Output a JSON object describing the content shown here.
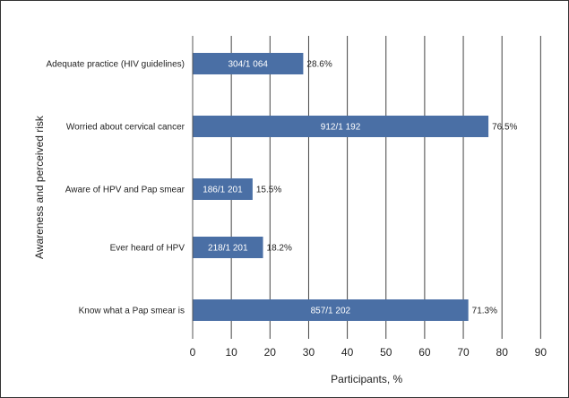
{
  "chart_data": {
    "type": "bar",
    "orientation": "horizontal",
    "title": "",
    "xlabel": "Participants, %",
    "ylabel": "Awareness and perceived risk",
    "xlim": [
      0,
      90
    ],
    "xticks": [
      "0",
      "10",
      "20",
      "30",
      "40",
      "50",
      "60",
      "70",
      "80",
      "90"
    ],
    "grid": "vertical",
    "bar_color": "#4a6fa5",
    "categories": [
      "Adequate practice (HIV guidelines)",
      "Worried about cervical cancer",
      "Aware of HPV and Pap smear",
      "Ever heard of HPV",
      "Know what a Pap smear is"
    ],
    "values": [
      28.6,
      76.5,
      15.5,
      18.2,
      71.3
    ],
    "value_labels": [
      "28.6%",
      "76.5%",
      "15.5%",
      "18.2%",
      "71.3%"
    ],
    "bar_labels": [
      "304/1 064",
      "912/1 192",
      "186/1 201",
      "218/1 201",
      "857/1 202"
    ]
  }
}
